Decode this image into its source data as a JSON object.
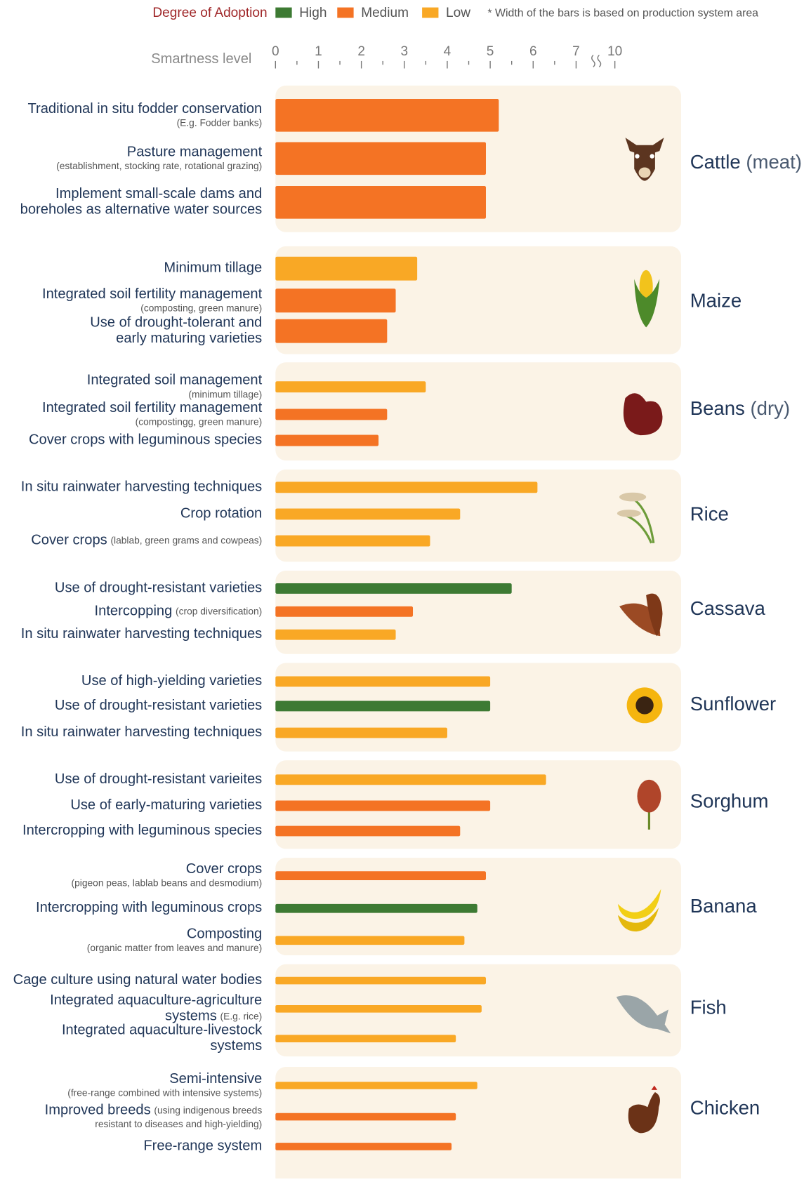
{
  "chart_data": {
    "type": "bar",
    "orientation": "horizontal",
    "legend": {
      "title": "Degree of Adoption",
      "levels": [
        {
          "name": "High",
          "color": "#3d7a33"
        },
        {
          "name": "Medium",
          "color": "#f47324"
        },
        {
          "name": "Low",
          "color": "#f9a825"
        }
      ],
      "note": "* Width of the bars is based on production system area"
    },
    "x_label": "Smartness level",
    "xlim": [
      0,
      10
    ],
    "xticks": [
      0,
      1,
      2,
      3,
      4,
      5,
      6,
      7,
      10
    ],
    "minor_xticks": [
      0.5,
      1.5,
      2.5,
      3.5,
      4.5,
      5.5,
      6.5
    ],
    "axis_break": [
      7,
      10
    ],
    "groups": [
      {
        "name": "Cattle",
        "qualifier": "(meat)",
        "items": [
          {
            "lines": [
              {
                "main": "Traditional in situ fodder conservation"
              },
              {
                "note": "(E.g. Fodder banks)"
              }
            ],
            "level": 1,
            "value": 5.2
          },
          {
            "lines": [
              {
                "main": "Pasture management"
              },
              {
                "note": "(establishment, stocking rate, rotational grazing)"
              }
            ],
            "level": 1,
            "value": 4.9
          },
          {
            "lines": [
              {
                "main": "Implement small-scale dams and"
              },
              {
                "main": "boreholes as alternative water sources"
              }
            ],
            "level": 1,
            "value": 4.9
          }
        ]
      },
      {
        "name": "Maize",
        "items": [
          {
            "lines": [
              {
                "main": "Minimum tillage"
              }
            ],
            "level": 2,
            "value": 3.3
          },
          {
            "lines": [
              {
                "main": "Integrated soil fertility management"
              },
              {
                "note": "(composting, green manure)"
              }
            ],
            "level": 1,
            "value": 2.8
          },
          {
            "lines": [
              {
                "main": "Use of drought-tolerant and"
              },
              {
                "main": "early maturing varieties"
              }
            ],
            "level": 1,
            "value": 2.6
          }
        ]
      },
      {
        "name": "Beans",
        "qualifier": "(dry)",
        "items": [
          {
            "lines": [
              {
                "main": "Integrated soil management"
              },
              {
                "note": "(minimum tillage)"
              }
            ],
            "level": 2,
            "value": 3.5
          },
          {
            "lines": [
              {
                "main": "Integrated soil fertility management"
              },
              {
                "note": "(compostingg, green manure)"
              }
            ],
            "level": 1,
            "value": 2.6
          },
          {
            "lines": [
              {
                "main": "Cover crops with leguminous species"
              }
            ],
            "level": 1,
            "value": 2.4
          }
        ]
      },
      {
        "name": "Rice",
        "items": [
          {
            "lines": [
              {
                "main": "In situ rainwater harvesting techniques"
              }
            ],
            "level": 2,
            "value": 6.1
          },
          {
            "lines": [
              {
                "main": "Crop rotation"
              }
            ],
            "level": 2,
            "value": 4.3
          },
          {
            "lines": [
              {
                "main": "Cover crops",
                "note": "(lablab, green grams and cowpeas)"
              }
            ],
            "level": 2,
            "value": 3.6
          }
        ]
      },
      {
        "name": "Cassava",
        "items": [
          {
            "lines": [
              {
                "main": "Use of drought-resistant varieties"
              }
            ],
            "level": 0,
            "value": 5.5
          },
          {
            "lines": [
              {
                "main": "Intercopping",
                "note": "(crop diversification)"
              }
            ],
            "level": 1,
            "value": 3.2
          },
          {
            "lines": [
              {
                "main": "In situ rainwater harvesting techniques"
              }
            ],
            "level": 2,
            "value": 2.8
          }
        ]
      },
      {
        "name": "Sunflower",
        "items": [
          {
            "lines": [
              {
                "main": "Use of high-yielding varieties"
              }
            ],
            "level": 2,
            "value": 5.0
          },
          {
            "lines": [
              {
                "main": "Use of drought-resistant varieties"
              }
            ],
            "level": 0,
            "value": 5.0
          },
          {
            "lines": [
              {
                "main": "In situ rainwater harvesting techniques"
              }
            ],
            "level": 2,
            "value": 4.0
          }
        ]
      },
      {
        "name": "Sorghum",
        "items": [
          {
            "lines": [
              {
                "main": "Use of drought-resistant varieites"
              }
            ],
            "level": 2,
            "value": 6.3
          },
          {
            "lines": [
              {
                "main": "Use of early-maturing varieties"
              }
            ],
            "level": 1,
            "value": 5.0
          },
          {
            "lines": [
              {
                "main": "Intercropping with leguminous species"
              }
            ],
            "level": 1,
            "value": 4.3
          }
        ]
      },
      {
        "name": "Banana",
        "items": [
          {
            "lines": [
              {
                "main": "Cover crops"
              },
              {
                "note": "(pigeon peas, lablab beans and desmodium)"
              }
            ],
            "level": 1,
            "value": 4.9
          },
          {
            "lines": [
              {
                "main": "Intercropping with leguminous crops"
              }
            ],
            "level": 0,
            "value": 4.7
          },
          {
            "lines": [
              {
                "main": "Composting"
              },
              {
                "note": "(organic matter from leaves and manure)"
              }
            ],
            "level": 2,
            "value": 4.4
          }
        ]
      },
      {
        "name": "Fish",
        "items": [
          {
            "lines": [
              {
                "main": "Cage culture using natural water bodies"
              }
            ],
            "level": 2,
            "value": 4.9
          },
          {
            "lines": [
              {
                "main": "Integrated aquaculture-agriculture"
              },
              {
                "main": "systems",
                "note": "(E.g. rice)"
              }
            ],
            "level": 2,
            "value": 4.8
          },
          {
            "lines": [
              {
                "main": "Integrated aquaculture-livestock"
              },
              {
                "main": "systems"
              }
            ],
            "level": 2,
            "value": 4.2
          }
        ]
      },
      {
        "name": "Chicken",
        "items": [
          {
            "lines": [
              {
                "main": "Semi-intensive"
              },
              {
                "note": "(free-range combined with intensive systems)"
              }
            ],
            "level": 2,
            "value": 4.7
          },
          {
            "lines": [
              {
                "main": "Improved breeds",
                "note": "(using indigenous breeds"
              },
              {
                "note": "resistant to diseases and high-yielding)"
              }
            ],
            "level": 1,
            "value": 4.2
          },
          {
            "lines": [
              {
                "main": "Free-range system"
              }
            ],
            "level": 1,
            "value": 4.1
          }
        ]
      }
    ]
  }
}
